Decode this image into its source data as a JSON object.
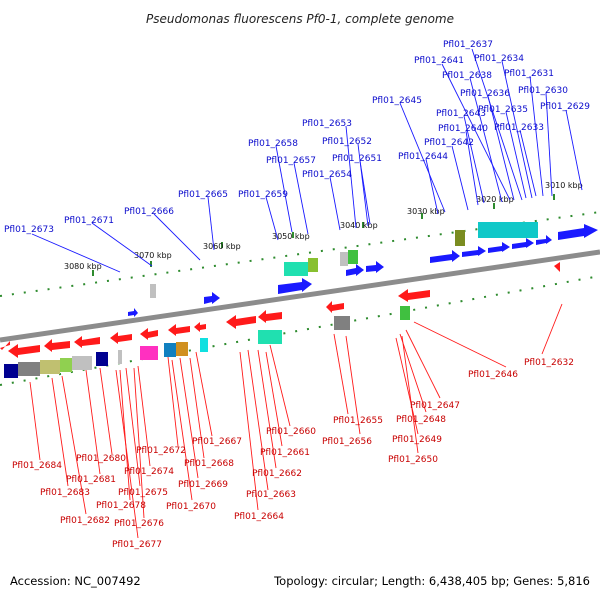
{
  "header": {
    "title": "Pseudomonas fluorescens Pf0-1, complete genome"
  },
  "footer": {
    "accession": "Accession: NC_007492",
    "summary": "Topology: circular; Length: 6,438,405 bp; Genes: 5,816"
  },
  "colors": {
    "forward_gene": "#1a1aff",
    "reverse_gene": "#ff1a1a",
    "forward_label": "#0b0bcc",
    "reverse_label": "#c80000",
    "backbone": "#8c8c8c",
    "tick": "#2e8b2e"
  },
  "scale_labels": [
    "3010 kbp",
    "3020 kbp",
    "3030 kbp",
    "3040 kbp",
    "3050 kbp",
    "3060 kbp",
    "3070 kbp",
    "3080 kbp"
  ],
  "forward_labels": [
    "Pfl01_2637",
    "Pfl01_2641",
    "Pfl01_2634",
    "Pfl01_2638",
    "Pfl01_2631",
    "Pfl01_2630",
    "Pfl01_2645",
    "Pfl01_2636",
    "Pfl01_2643",
    "Pfl01_2635",
    "Pfl01_2629",
    "Pfl01_2640",
    "Pfl01_2633",
    "Pfl01_2653",
    "Pfl01_2642",
    "Pfl01_2658",
    "Pfl01_2652",
    "Pfl01_2644",
    "Pfl01_2657",
    "Pfl01_2651",
    "Pfl01_2654",
    "Pfl01_2665",
    "Pfl01_2659",
    "Pfl01_2666",
    "Pfl01_2671",
    "Pfl01_2673"
  ],
  "reverse_labels": [
    "Pfl01_2632",
    "Pfl01_2646",
    "Pfl01_2647",
    "Pfl01_2648",
    "Pfl01_2655",
    "Pfl01_2649",
    "Pfl01_2656",
    "Pfl01_2650",
    "Pfl01_2660",
    "Pfl01_2667",
    "Pfl01_2672",
    "Pfl01_2661",
    "Pfl01_2668",
    "Pfl01_2680",
    "Pfl01_2674",
    "Pfl01_2684",
    "Pfl01_2662",
    "Pfl01_2681",
    "Pfl01_2669",
    "Pfl01_2675",
    "Pfl01_2683",
    "Pfl01_2663",
    "Pfl01_2678",
    "Pfl01_2670",
    "Pfl01_2682",
    "Pfl01_2664",
    "Pfl01_2676",
    "Pfl01_2677"
  ]
}
